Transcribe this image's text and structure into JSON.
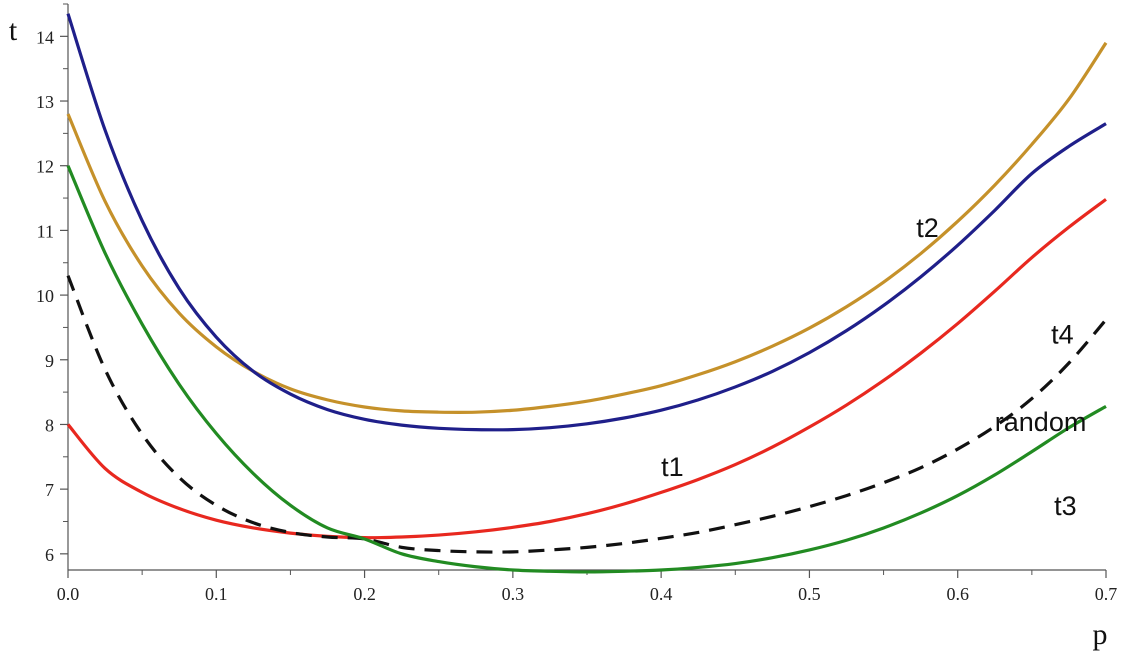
{
  "chart_data": {
    "type": "line",
    "title": "",
    "xlabel": "p",
    "ylabel": "t",
    "xlim": [
      0,
      0.7
    ],
    "ylim": [
      5.75,
      14.5
    ],
    "grid": false,
    "x_ticks": [
      "0.0",
      "0.1",
      "0.2",
      "0.3",
      "0.4",
      "0.5",
      "0.6",
      "0.7"
    ],
    "y_ticks": [
      "6",
      "7",
      "8",
      "9",
      "10",
      "11",
      "12",
      "13",
      "14"
    ],
    "x_tick_values": [
      0,
      0.1,
      0.2,
      0.3,
      0.4,
      0.5,
      0.6,
      0.7
    ],
    "y_tick_values": [
      6,
      7,
      8,
      9,
      10,
      11,
      12,
      13,
      14
    ],
    "x": [
      0,
      0.025,
      0.05,
      0.075,
      0.1,
      0.125,
      0.15,
      0.175,
      0.2,
      0.225,
      0.25,
      0.275,
      0.3,
      0.325,
      0.35,
      0.375,
      0.4,
      0.425,
      0.45,
      0.475,
      0.5,
      0.525,
      0.55,
      0.575,
      0.6,
      0.625,
      0.65,
      0.675,
      0.7
    ],
    "series": [
      {
        "name": "t2",
        "color": "#c5912a",
        "dash": "solid",
        "values": [
          12.8,
          11.45,
          10.45,
          9.72,
          9.2,
          8.82,
          8.55,
          8.38,
          8.27,
          8.21,
          8.19,
          8.19,
          8.22,
          8.28,
          8.36,
          8.47,
          8.6,
          8.77,
          8.97,
          9.21,
          9.49,
          9.82,
          10.2,
          10.64,
          11.14,
          11.7,
          12.33,
          13.03,
          13.9
        ]
      },
      {
        "name": "t1",
        "color": "#1f1f8a",
        "dash": "solid",
        "values": [
          14.35,
          12.55,
          11.15,
          10.1,
          9.35,
          8.82,
          8.47,
          8.23,
          8.08,
          7.99,
          7.94,
          7.92,
          7.92,
          7.95,
          8.01,
          8.1,
          8.22,
          8.38,
          8.58,
          8.82,
          9.11,
          9.45,
          9.84,
          10.28,
          10.77,
          11.31,
          11.88,
          12.3,
          12.65
        ]
      },
      {
        "name": "t4",
        "color": "#e8281f",
        "dash": "solid",
        "values": [
          8.0,
          7.32,
          6.95,
          6.7,
          6.52,
          6.4,
          6.32,
          6.27,
          6.25,
          6.26,
          6.29,
          6.34,
          6.41,
          6.5,
          6.62,
          6.77,
          6.95,
          7.15,
          7.38,
          7.65,
          7.96,
          8.3,
          8.68,
          9.1,
          9.56,
          10.06,
          10.58,
          11.05,
          11.48
        ]
      },
      {
        "name": "random",
        "color": "#111111",
        "dash": "dashed",
        "values": [
          10.3,
          8.85,
          7.85,
          7.18,
          6.75,
          6.48,
          6.33,
          6.26,
          6.23,
          6.1,
          6.05,
          6.03,
          6.03,
          6.06,
          6.1,
          6.16,
          6.24,
          6.33,
          6.45,
          6.58,
          6.73,
          6.9,
          7.1,
          7.33,
          7.62,
          7.97,
          8.4,
          8.95,
          9.62
        ]
      },
      {
        "name": "t3",
        "color": "#228b22",
        "dash": "solid",
        "values": [
          12.0,
          10.65,
          9.55,
          8.62,
          7.86,
          7.24,
          6.75,
          6.4,
          6.23,
          6.0,
          5.88,
          5.8,
          5.75,
          5.73,
          5.72,
          5.73,
          5.75,
          5.79,
          5.85,
          5.94,
          6.06,
          6.21,
          6.4,
          6.63,
          6.9,
          7.22,
          7.58,
          7.95,
          8.28
        ]
      }
    ],
    "annotations": [
      {
        "text": "t2",
        "x": 0.572,
        "y": 10.9
      },
      {
        "text": "t4",
        "x": 0.663,
        "y": 9.25
      },
      {
        "text": "random",
        "x": 0.625,
        "y": 7.9
      },
      {
        "text": "t1",
        "x": 0.4,
        "y": 7.2
      },
      {
        "text": "t3",
        "x": 0.665,
        "y": 6.6
      }
    ]
  }
}
